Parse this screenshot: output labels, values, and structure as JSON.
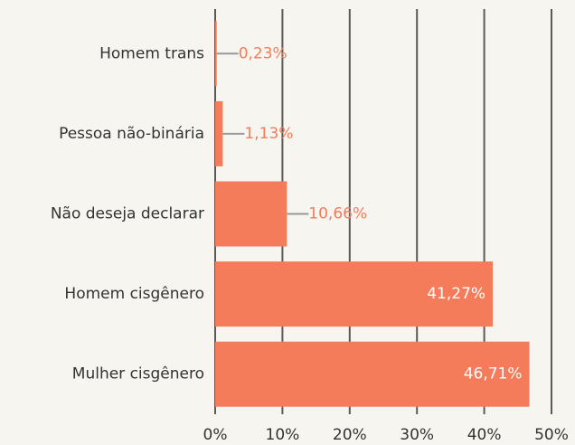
{
  "chart_data": {
    "type": "bar",
    "orientation": "horizontal",
    "categories": [
      "Homem trans",
      "Pessoa não-binária",
      "Não deseja declarar",
      "Homem cisgênero",
      "Mulher cisgênero"
    ],
    "values": [
      0.23,
      1.13,
      10.66,
      41.27,
      46.71
    ],
    "value_labels": [
      "0,23%",
      "1,13%",
      "10,66%",
      "41,27%",
      "46,71%"
    ],
    "color": "#f47c5a",
    "xlim": [
      0,
      50
    ],
    "xticks": [
      {
        "value": 0,
        "label": "0%"
      },
      {
        "value": 10,
        "label": "10%"
      },
      {
        "value": 20,
        "label": "20%"
      },
      {
        "value": 30,
        "label": "30%"
      },
      {
        "value": 40,
        "label": "40%"
      },
      {
        "value": 50,
        "label": "50%"
      }
    ],
    "grid": true
  }
}
